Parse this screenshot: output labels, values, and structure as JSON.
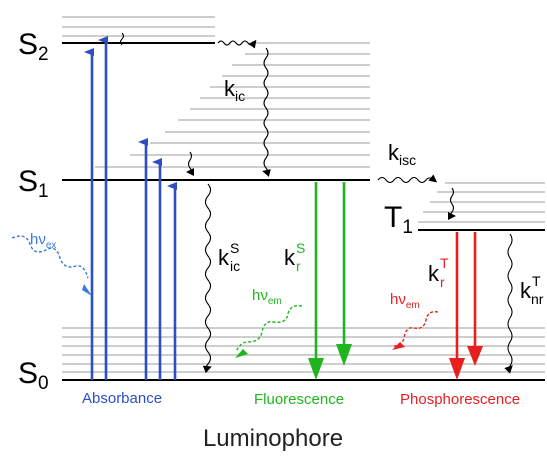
{
  "states": {
    "s0": {
      "letter": "S",
      "sub": "0"
    },
    "s1": {
      "letter": "S",
      "sub": "1"
    },
    "s2": {
      "letter": "S",
      "sub": "2"
    },
    "t1": {
      "letter": "T",
      "sub": "1"
    }
  },
  "rates": {
    "kic": {
      "k": "k",
      "sub": "ic"
    },
    "kisc": {
      "k": "k",
      "sub": "isc"
    },
    "kicS": {
      "k": "k",
      "sub": "ic",
      "sup": "S"
    },
    "krS": {
      "k": "k",
      "sub": "r",
      "sup": "S"
    },
    "krT": {
      "k": "k",
      "sub": "r",
      "sup": "T"
    },
    "knrT": {
      "k": "k",
      "sub": "nr",
      "sup": "T"
    }
  },
  "photons": {
    "ex": {
      "hv": "hν",
      "sub": "ex"
    },
    "em_fluo": {
      "hv": "hν",
      "sub": "em"
    },
    "em_phos": {
      "hv": "hν",
      "sub": "em"
    }
  },
  "processes": {
    "absorbance": "Absorbance",
    "fluorescence": "Fluorescence",
    "phosphorescence": "Phosphorescence"
  },
  "footer": "Luminophore",
  "colors": {
    "absorbance": "#2e4fc4",
    "fluorescence": "#1fb51f",
    "phosphorescence": "#e81f1f",
    "excitation_photon": "#3a78e0",
    "vib_level": "#b0b0b0",
    "main_level": "#000000"
  }
}
